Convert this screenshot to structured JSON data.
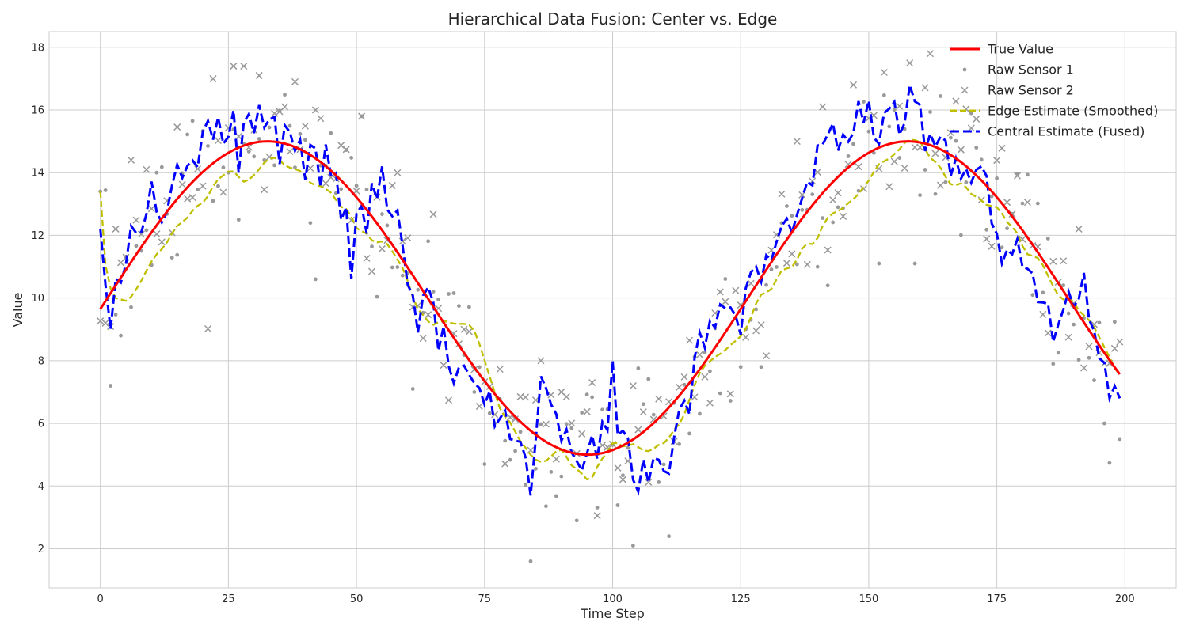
{
  "chart_data": {
    "type": "line",
    "title": "Hierarchical Data Fusion: Center vs. Edge",
    "xlabel": "Time Step",
    "ylabel": "Value",
    "xlim": [
      -10,
      210
    ],
    "ylim": [
      0.75,
      18.5
    ],
    "xticks": [
      0,
      25,
      50,
      75,
      100,
      125,
      150,
      175,
      200
    ],
    "yticks": [
      2,
      4,
      6,
      8,
      10,
      12,
      14,
      16,
      18
    ],
    "grid": true,
    "legend_position": "top-right",
    "n_points": 200,
    "series": [
      {
        "name": "True Value",
        "kind": "line",
        "style": "solid",
        "color": "#ff0000",
        "function": "10 + 5*sin(2*pi*t/125 - 0.07)",
        "anchor_points": [
          [
            0,
            10.3
          ],
          [
            30,
            15.0
          ],
          [
            93,
            5.0
          ],
          [
            156,
            15.0
          ],
          [
            199,
            7.3
          ]
        ]
      },
      {
        "name": "Raw Sensor 1",
        "kind": "scatter",
        "marker": "dot",
        "color": "#999999",
        "noise_sd": 1.5,
        "sample_points": [
          [
            0,
            13.4
          ],
          [
            2,
            7.2
          ],
          [
            4,
            8.8
          ],
          [
            22,
            13.1
          ],
          [
            27,
            12.5
          ],
          [
            32,
            14.4
          ],
          [
            42,
            10.6
          ],
          [
            51,
            15.8
          ],
          [
            61,
            7.1
          ],
          [
            73,
            7.0
          ],
          [
            75,
            4.7
          ],
          [
            84,
            1.6
          ],
          [
            93,
            2.9
          ],
          [
            104,
            2.1
          ],
          [
            111,
            2.4
          ],
          [
            125,
            7.8
          ],
          [
            129,
            7.8
          ],
          [
            142,
            10.4
          ],
          [
            152,
            11.1
          ],
          [
            159,
            11.1
          ],
          [
            182,
            10.1
          ],
          [
            186,
            7.9
          ],
          [
            196,
            6.0
          ],
          [
            199,
            5.5
          ]
        ]
      },
      {
        "name": "Raw Sensor 2",
        "kind": "scatter",
        "marker": "x",
        "color": "#999999",
        "noise_sd": 1.5,
        "sample_points": [
          [
            1,
            9.2
          ],
          [
            6,
            14.4
          ],
          [
            9,
            14.1
          ],
          [
            22,
            17.0
          ],
          [
            26,
            17.4
          ],
          [
            28,
            17.4
          ],
          [
            31,
            17.1
          ],
          [
            38,
            16.9
          ],
          [
            42,
            16.0
          ],
          [
            51,
            15.8
          ],
          [
            58,
            14.0
          ],
          [
            86,
            8.0
          ],
          [
            96,
            7.3
          ],
          [
            104,
            7.2
          ],
          [
            136,
            15.0
          ],
          [
            141,
            16.1
          ],
          [
            147,
            16.8
          ],
          [
            153,
            17.2
          ],
          [
            158,
            17.5
          ],
          [
            162,
            17.8
          ],
          [
            179,
            13.9
          ],
          [
            191,
            12.2
          ],
          [
            199,
            8.6
          ]
        ]
      },
      {
        "name": "Edge Estimate (Smoothed)",
        "kind": "line",
        "style": "dashed",
        "color": "#bfbf00",
        "lag_steps": 3,
        "amplitude_scale": 0.92,
        "anchor_points": [
          [
            0,
            13.4
          ],
          [
            2,
            10.5
          ],
          [
            6,
            9.7
          ],
          [
            10,
            11.3
          ],
          [
            20,
            13.0
          ],
          [
            24,
            14.3
          ],
          [
            29,
            13.5
          ],
          [
            34,
            14.5
          ],
          [
            38,
            13.6
          ],
          [
            45,
            13.1
          ],
          [
            50,
            11.6
          ],
          [
            57,
            11.3
          ],
          [
            63,
            8.4
          ],
          [
            70,
            9.2
          ],
          [
            73,
            9.1
          ],
          [
            78,
            5.9
          ],
          [
            85,
            3.7
          ],
          [
            90,
            4.7
          ],
          [
            95,
            3.1
          ],
          [
            100,
            5.5
          ],
          [
            106,
            4.6
          ],
          [
            113,
            5.5
          ],
          [
            117,
            8.0
          ],
          [
            125,
            8.9
          ],
          [
            130,
            10.3
          ],
          [
            140,
            11.8
          ],
          [
            150,
            13.8
          ],
          [
            158,
            15.5
          ],
          [
            166,
            13.2
          ],
          [
            175,
            12.5
          ],
          [
            188,
            9.5
          ],
          [
            193,
            9.3
          ],
          [
            199,
            6.9
          ]
        ]
      },
      {
        "name": "Central Estimate (Fused)",
        "kind": "line",
        "style": "dashed",
        "color": "#0000ff",
        "noise_sd": 0.9,
        "anchor_points": [
          [
            0,
            12.2
          ],
          [
            2,
            9.0
          ],
          [
            6,
            12.3
          ],
          [
            14,
            13.6
          ],
          [
            20,
            15.3
          ],
          [
            28,
            15.6
          ],
          [
            33,
            15.7
          ],
          [
            38,
            14.7
          ],
          [
            44,
            14.9
          ],
          [
            49,
            10.6
          ],
          [
            55,
            14.2
          ],
          [
            58,
            12.8
          ],
          [
            62,
            8.9
          ],
          [
            75,
            6.6
          ],
          [
            80,
            5.5
          ],
          [
            84,
            3.7
          ],
          [
            86,
            7.5
          ],
          [
            94,
            4.5
          ],
          [
            100,
            8.0
          ],
          [
            104,
            4.2
          ],
          [
            111,
            4.4
          ],
          [
            117,
            8.9
          ],
          [
            128,
            11.0
          ],
          [
            141,
            14.9
          ],
          [
            150,
            16.3
          ],
          [
            158,
            16.8
          ],
          [
            166,
            13.9
          ],
          [
            172,
            14.2
          ],
          [
            176,
            11.1
          ],
          [
            180,
            11.0
          ],
          [
            186,
            8.6
          ],
          [
            192,
            10.8
          ],
          [
            197,
            6.8
          ],
          [
            199,
            6.8
          ]
        ]
      }
    ]
  }
}
